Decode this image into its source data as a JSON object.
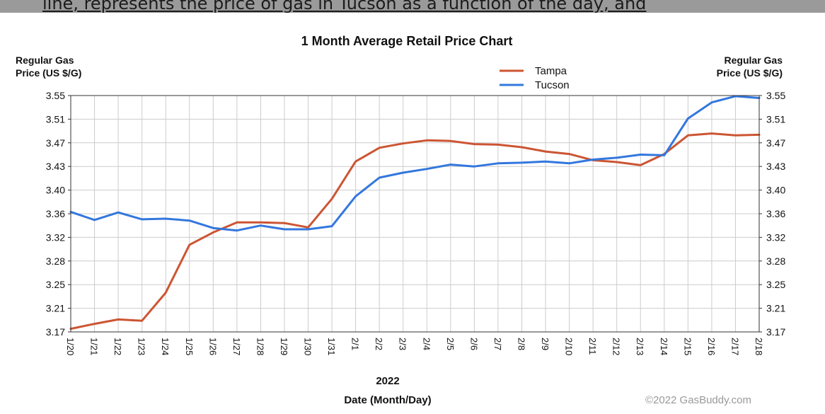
{
  "page": {
    "top_caption": "line, represents the price of gas in Tucson as a function of the day, and"
  },
  "chart_data": {
    "type": "line",
    "title": "1 Month Average Retail Price Chart",
    "ylabel_left": [
      "Regular Gas",
      "Price (US $/G)"
    ],
    "ylabel_right": [
      "Regular Gas",
      "Price (US $/G)"
    ],
    "year_label": "2022",
    "xlabel": "Date (Month/Day)",
    "credit": "©2022 GasBuddy.com",
    "ylim": [
      3.17,
      3.55
    ],
    "yticks": [
      "3.17",
      "3.21",
      "3.25",
      "3.28",
      "3.32",
      "3.36",
      "3.40",
      "3.43",
      "3.47",
      "3.51",
      "3.55"
    ],
    "categories": [
      "1/20",
      "1/21",
      "1/22",
      "1/23",
      "1/24",
      "1/25",
      "1/26",
      "1/27",
      "1/28",
      "1/29",
      "1/30",
      "1/31",
      "2/1",
      "2/2",
      "2/3",
      "2/4",
      "2/5",
      "2/6",
      "2/7",
      "2/8",
      "2/9",
      "2/10",
      "2/11",
      "2/12",
      "2/13",
      "2/14",
      "2/15",
      "2/16",
      "2/17",
      "2/18"
    ],
    "grid": true,
    "legend_position": "top-right",
    "series": [
      {
        "name": "Tampa",
        "color": "#cc5533",
        "values": [
          3.175,
          3.183,
          3.19,
          3.188,
          3.233,
          3.31,
          3.33,
          3.346,
          3.346,
          3.345,
          3.338,
          3.384,
          3.444,
          3.466,
          3.473,
          3.478,
          3.477,
          3.472,
          3.471,
          3.467,
          3.46,
          3.456,
          3.446,
          3.443,
          3.438,
          3.456,
          3.486,
          3.489,
          3.486,
          3.487
        ]
      },
      {
        "name": "Tucson",
        "color": "#3377dd",
        "values": [
          3.363,
          3.35,
          3.362,
          3.351,
          3.352,
          3.349,
          3.337,
          3.333,
          3.341,
          3.335,
          3.335,
          3.34,
          3.388,
          3.418,
          3.426,
          3.432,
          3.439,
          3.436,
          3.441,
          3.442,
          3.444,
          3.441,
          3.447,
          3.45,
          3.455,
          3.454,
          3.513,
          3.539,
          3.549,
          3.546
        ]
      }
    ]
  }
}
